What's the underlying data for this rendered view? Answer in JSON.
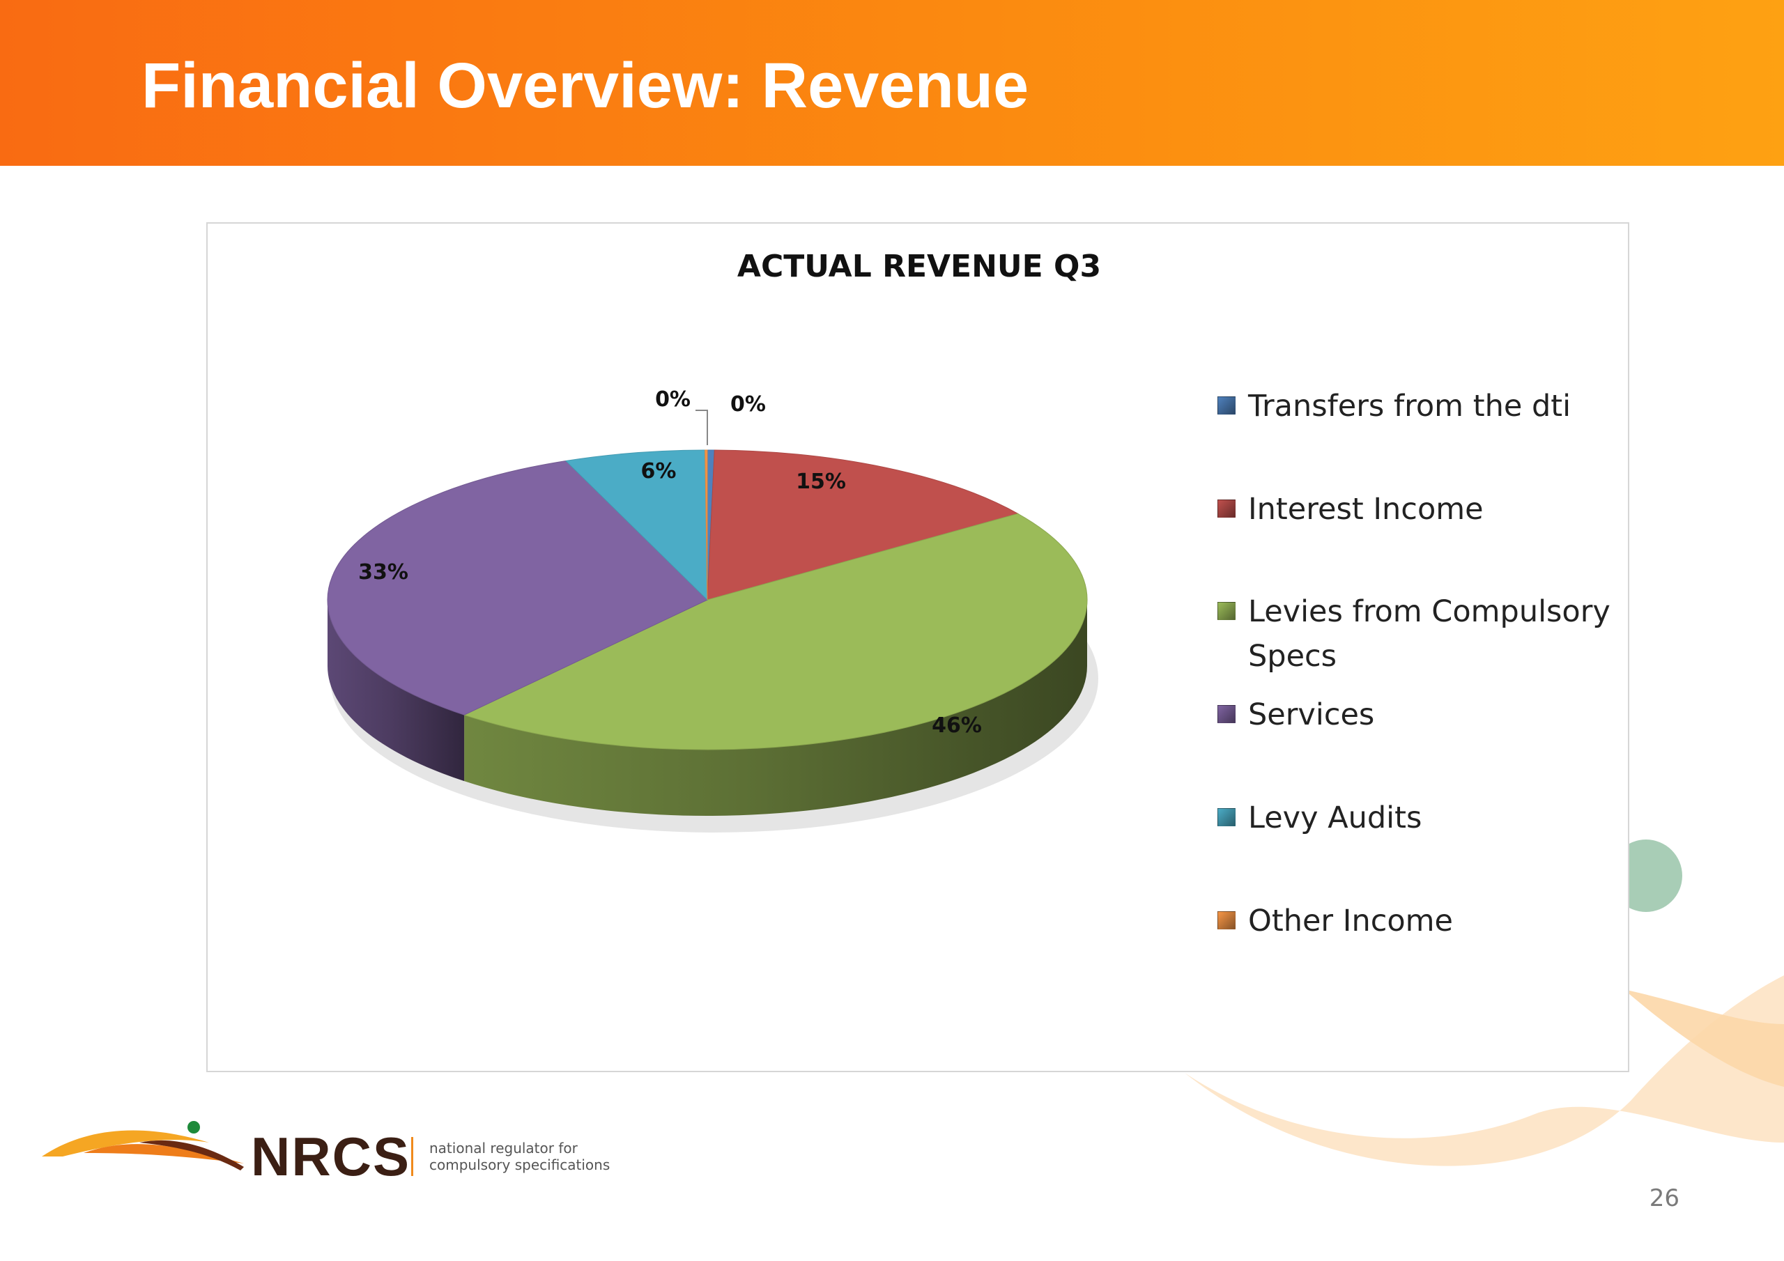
{
  "slide": {
    "title": "Financial Overview: Revenue",
    "page_number": "26"
  },
  "logo": {
    "name": "NRCS",
    "tagline_line1": "national regulator for",
    "tagline_line2": "compulsory specifications"
  },
  "chart_data": {
    "type": "pie",
    "title": "ACTUAL REVENUE Q3",
    "legend_position": "right",
    "slices": [
      {
        "name": "Transfers from the dti",
        "value": 0.3,
        "label": "0%",
        "color": "#4f81bd"
      },
      {
        "name": "Interest Income",
        "value": 15,
        "label": "15%",
        "color": "#c0504d"
      },
      {
        "name": "Levies from Compulsory Specs",
        "value": 46,
        "label": "46%",
        "color": "#9bbb59"
      },
      {
        "name": "Services",
        "value": 33,
        "label": "33%",
        "color": "#8064a2"
      },
      {
        "name": "Levy Audits",
        "value": 6,
        "label": "6%",
        "color": "#4bacc6"
      },
      {
        "name": "Other Income",
        "value": 0.1,
        "label": "0%",
        "color": "#f79646"
      }
    ]
  }
}
